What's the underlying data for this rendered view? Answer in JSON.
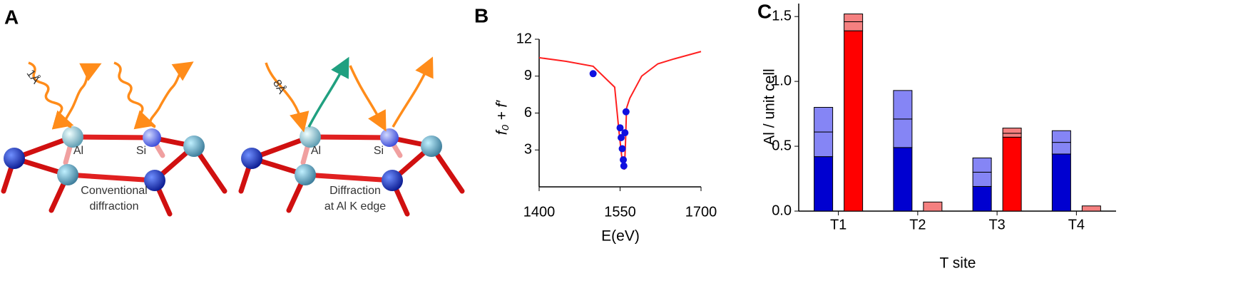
{
  "diagram": {
    "panel_label": "A",
    "left": {
      "al": "Al",
      "si": "Si",
      "scale": "1Å",
      "caption": [
        "Conventional",
        "diffraction"
      ]
    },
    "right": {
      "al": "Al",
      "si": "Si",
      "scale": "8Å",
      "caption": [
        "Diffraction",
        "at Al K edge"
      ]
    }
  },
  "chart_data": [
    {
      "type": "line",
      "panel_label": "B",
      "xlabel": "E(eV)",
      "ylabel": "f₀ + f′",
      "xlim": [
        1400,
        1700
      ],
      "xticks": [
        1400,
        1550,
        1700
      ],
      "ylim": [
        0,
        12
      ],
      "yticks": [
        3,
        6,
        9,
        12
      ],
      "series": [
        {
          "mode": "line",
          "color": "#ff2020",
          "x": [
            1400,
            1450,
            1500,
            1540,
            1548,
            1553,
            1556,
            1558,
            1560,
            1562,
            1568,
            1590,
            1620,
            1650,
            1700
          ],
          "values": [
            10.5,
            10.2,
            9.8,
            8.1,
            4.5,
            2.5,
            1.6,
            1.4,
            3.5,
            6.4,
            7.2,
            9.0,
            10.0,
            10.4,
            11.0
          ]
        },
        {
          "mode": "markers",
          "color": "#1010e0",
          "x": [
            1500,
            1550,
            1552,
            1554,
            1556,
            1557,
            1559,
            1561
          ],
          "values": [
            9.2,
            4.8,
            4.0,
            3.1,
            2.2,
            1.7,
            4.4,
            6.1
          ]
        }
      ]
    },
    {
      "type": "stacked-bar",
      "panel_label": "C",
      "xlabel": "T site",
      "ylabel": "Al / unit cell",
      "categories": [
        "T1",
        "T2",
        "T3",
        "T4"
      ],
      "ylim": [
        0,
        1.6
      ],
      "yticks": [
        {
          "value": 0,
          "label": "0.0"
        },
        0.5,
        {
          "value": 1,
          "label": "1.0"
        },
        1.5
      ],
      "series": [
        {
          "stack": 0,
          "color": "#0000d0",
          "values": [
            0.42,
            0.49,
            0.19,
            0.44
          ]
        },
        {
          "stack": 0,
          "color": "#8585f5",
          "values": [
            0.19,
            0.22,
            0.11,
            0.09
          ]
        },
        {
          "stack": 0,
          "color": "#8585f5",
          "values": [
            0.19,
            0.22,
            0.11,
            0.09
          ]
        },
        {
          "stack": 1,
          "color": "#ff0000",
          "values": [
            1.39,
            0,
            0.57,
            0
          ]
        },
        {
          "stack": 1,
          "color": "#f58080",
          "values": [
            0.07,
            0.07,
            0.03,
            0.04
          ]
        },
        {
          "stack": 1,
          "color": "#f58080",
          "values": [
            0.06,
            0,
            0.04,
            0
          ]
        }
      ]
    }
  ]
}
